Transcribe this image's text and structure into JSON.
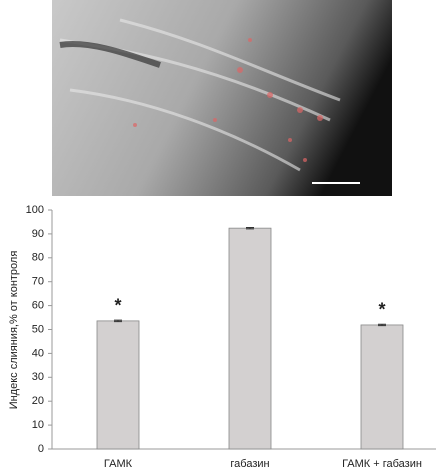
{
  "chart_data": {
    "type": "bar",
    "categories": [
      "ГАМК",
      "габазин",
      "ГАМК + габазин"
    ],
    "values": [
      53.6,
      92.4,
      51.9
    ],
    "errors": [
      0.3,
      0.3,
      0.3
    ],
    "annotations": [
      "*",
      null,
      "*"
    ],
    "color": "#d3d0d0",
    "ylabel": "Индекс слияния,% от контроля",
    "ylim": [
      0,
      100
    ],
    "yticks": [
      0,
      10,
      20,
      30,
      40,
      50,
      60,
      70,
      80,
      90,
      100
    ],
    "grid": false
  }
}
